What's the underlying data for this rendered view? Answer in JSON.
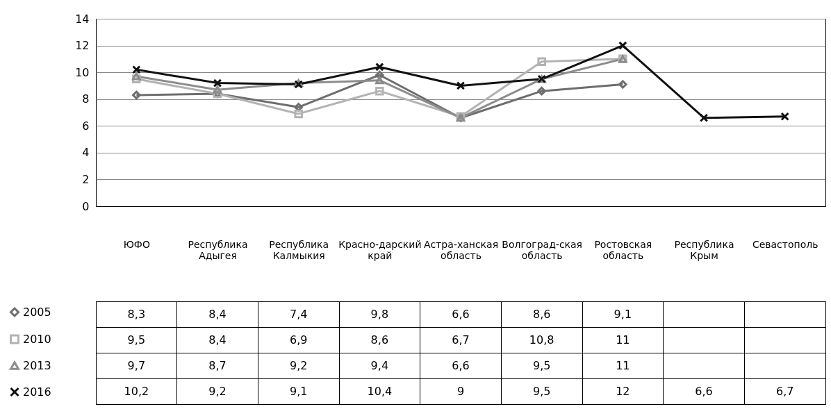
{
  "chart_data": {
    "type": "line",
    "categories": [
      "ЮФО",
      "Республика Адыгея",
      "Республика Калмыкия",
      "Красно-дарский край",
      "Астра-ханская область",
      "Волгоград-ская область",
      "Ростовская область",
      "Республика Крым",
      "Севастополь"
    ],
    "series": [
      {
        "name": "2005",
        "color": "#6d6d6d",
        "marker": "diamond",
        "values": [
          8.3,
          8.4,
          7.4,
          9.8,
          6.6,
          8.6,
          9.1,
          null,
          null
        ],
        "value_labels": [
          "8,3",
          "8,4",
          "7,4",
          "9,8",
          "6,6",
          "8,6",
          "9,1",
          null,
          null
        ]
      },
      {
        "name": "2010",
        "color": "#b3b3b3",
        "marker": "square",
        "values": [
          9.5,
          8.4,
          6.9,
          8.6,
          6.7,
          10.8,
          11,
          null,
          null
        ],
        "value_labels": [
          "9,5",
          "8,4",
          "6,9",
          "8,6",
          "6,7",
          "10,8",
          "11",
          null,
          null
        ]
      },
      {
        "name": "2013",
        "color": "#8c8c8c",
        "marker": "triangle",
        "values": [
          9.7,
          8.7,
          9.2,
          9.4,
          6.6,
          9.5,
          11,
          null,
          null
        ],
        "value_labels": [
          "9,7",
          "8,7",
          "9,2",
          "9,4",
          "6,6",
          "9,5",
          "11",
          null,
          null
        ]
      },
      {
        "name": "2016",
        "color": "#111111",
        "marker": "cross",
        "values": [
          10.2,
          9.2,
          9.1,
          10.4,
          9,
          9.5,
          12,
          6.6,
          6.7
        ],
        "value_labels": [
          "10,2",
          "9,2",
          "9,1",
          "10,4",
          "9",
          "9,5",
          "12",
          "6,6",
          "6,7"
        ]
      }
    ],
    "ylim": [
      0,
      14
    ],
    "yticks": [
      0,
      2,
      4,
      6,
      8,
      10,
      12,
      14
    ],
    "grid": "y",
    "legend": "bottom left"
  }
}
